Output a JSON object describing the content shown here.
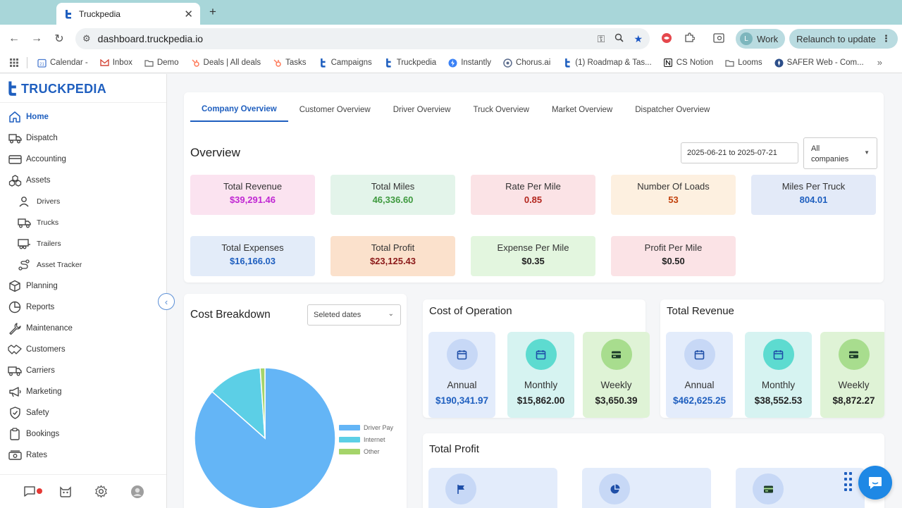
{
  "browser": {
    "tab_title": "Truckpedia",
    "tab_close": "✕",
    "new_tab": "+",
    "url": "dashboard.truckpedia.io",
    "profile_initial": "L",
    "profile_label": "Work",
    "relaunch_label": "Relaunch to update",
    "menu_dots": "⋮",
    "bookmarks": [
      {
        "label": "Calendar -",
        "icon": "calendar-icon",
        "color": "#4a7bd0"
      },
      {
        "label": "Inbox",
        "icon": "gmail-icon",
        "color": "#d44638"
      },
      {
        "label": "Demo",
        "icon": "folder-icon",
        "color": "#666666"
      },
      {
        "label": "Deals | All deals",
        "icon": "hubspot-icon",
        "color": "#ff7a59"
      },
      {
        "label": "Tasks",
        "icon": "hubspot-icon",
        "color": "#ff7a59"
      },
      {
        "label": "Campaigns",
        "icon": "truckpedia-icon",
        "color": "#1f5fbf"
      },
      {
        "label": "Truckpedia",
        "icon": "truckpedia-icon",
        "color": "#1f5fbf"
      },
      {
        "label": "Instantly",
        "icon": "bolt-icon",
        "color": "#3b82f6"
      },
      {
        "label": "Chorus.ai",
        "icon": "chorus-icon",
        "color": "#5a6b8c"
      },
      {
        "label": "(1) Roadmap & Tas...",
        "icon": "truckpedia-icon",
        "color": "#1f5fbf"
      },
      {
        "label": "CS Notion",
        "icon": "notion-icon",
        "color": "#222222"
      },
      {
        "label": "Looms",
        "icon": "folder-icon",
        "color": "#666666"
      },
      {
        "label": "SAFER Web - Com...",
        "icon": "safer-icon",
        "color": "#2d4f8a"
      }
    ],
    "bookmarks_more": "»"
  },
  "app": {
    "logo_text": "TRUCKPEDIA",
    "menu": [
      {
        "label": "Home",
        "icon": "home-icon",
        "active": true,
        "sub": false
      },
      {
        "label": "Dispatch",
        "icon": "truck-icon",
        "active": false,
        "sub": false
      },
      {
        "label": "Accounting",
        "icon": "wallet-icon",
        "active": false,
        "sub": false
      },
      {
        "label": "Assets",
        "icon": "boxes-icon",
        "active": false,
        "sub": false
      },
      {
        "label": "Drivers",
        "icon": "person-icon",
        "active": false,
        "sub": true
      },
      {
        "label": "Trucks",
        "icon": "truck-icon",
        "active": false,
        "sub": true
      },
      {
        "label": "Trailers",
        "icon": "trailer-icon",
        "active": false,
        "sub": true
      },
      {
        "label": "Asset Tracker",
        "icon": "route-icon",
        "active": false,
        "sub": true
      },
      {
        "label": "Planning",
        "icon": "package-icon",
        "active": false,
        "sub": false
      },
      {
        "label": "Reports",
        "icon": "chart-pie-icon",
        "active": false,
        "sub": false
      },
      {
        "label": "Maintenance",
        "icon": "wrench-icon",
        "active": false,
        "sub": false
      },
      {
        "label": "Customers",
        "icon": "handshake-icon",
        "active": false,
        "sub": false
      },
      {
        "label": "Carriers",
        "icon": "truck-fleet-icon",
        "active": false,
        "sub": false
      },
      {
        "label": "Marketing",
        "icon": "megaphone-icon",
        "active": false,
        "sub": false
      },
      {
        "label": "Safety",
        "icon": "shield-icon",
        "active": false,
        "sub": false
      },
      {
        "label": "Bookings",
        "icon": "clipboard-icon",
        "active": false,
        "sub": false
      },
      {
        "label": "Rates",
        "icon": "money-icon",
        "active": false,
        "sub": false
      }
    ],
    "collapse_glyph": "‹"
  },
  "overview": {
    "tabs": [
      "Company Overview",
      "Customer Overview",
      "Driver Overview",
      "Truck Overview",
      "Market Overview",
      "Dispatcher Overview"
    ],
    "active_tab": 0,
    "title": "Overview",
    "date_range": "2025-06-21 to 2025-07-21",
    "company_filter_line1": "All",
    "company_filter_line2": "companies",
    "kpis": [
      {
        "label": "Total Revenue",
        "value": "$39,291.46",
        "bg": "#fbe3f0",
        "color": "#c026d3"
      },
      {
        "label": "Total Miles",
        "value": "46,336.60",
        "bg": "#e3f4ea",
        "color": "#3f9a3f"
      },
      {
        "label": "Rate Per Mile",
        "value": "0.85",
        "bg": "#fbe3e6",
        "color": "#b3261e"
      },
      {
        "label": "Number Of Loads",
        "value": "53",
        "bg": "#fdf0e0",
        "color": "#c2410c"
      },
      {
        "label": "Miles Per Truck",
        "value": "804.01",
        "bg": "#e3eaf8",
        "color": "#1f5fbf"
      },
      {
        "label": "Total Expenses",
        "value": "$16,166.03",
        "bg": "#e3ecf9",
        "color": "#1f5fbf"
      },
      {
        "label": "Total Profit",
        "value": "$23,125.43",
        "bg": "#fbe1cc",
        "color": "#8b1a1a"
      },
      {
        "label": "Expense Per Mile",
        "value": "$0.35",
        "bg": "#e3f6df",
        "color": "#222222"
      },
      {
        "label": "Profit Per Mile",
        "value": "$0.50",
        "bg": "#fbe3e6",
        "color": "#222222"
      }
    ]
  },
  "cost_breakdown": {
    "title": "Cost Breakdown",
    "select_placeholder": "Seleted dates",
    "legend": [
      {
        "label": "Driver Pay",
        "color": "#64b5f6"
      },
      {
        "label": "Internet",
        "color": "#5ccfe6"
      },
      {
        "label": "Other",
        "color": "#a5d46a"
      }
    ]
  },
  "chart_data": {
    "type": "pie",
    "title": "Cost Breakdown",
    "categories": [
      "Driver Pay",
      "Internet",
      "Other"
    ],
    "values": [
      86.5,
      12.4,
      1.1
    ],
    "unit": "percent"
  },
  "cost_of_operation": {
    "title": "Cost of Operation",
    "items": [
      {
        "label": "Annual",
        "value": "$190,341.97",
        "bg": "#e3ecfb",
        "circle": "#c7d8f6",
        "value_color": "#1f5fbf",
        "icon": "calendar-icon"
      },
      {
        "label": "Monthly",
        "value": "$15,862.00",
        "bg": "#d6f3f1",
        "circle": "#5ddbd0",
        "value_color": "#222222",
        "icon": "calendar-icon"
      },
      {
        "label": "Weekly",
        "value": "$3,650.39",
        "bg": "#dff3d6",
        "circle": "#a8dd8e",
        "value_color": "#222222",
        "icon": "card-icon"
      }
    ]
  },
  "total_revenue": {
    "title": "Total Revenue",
    "items": [
      {
        "label": "Annual",
        "value": "$462,625.25",
        "bg": "#e3ecfb",
        "circle": "#c7d8f6",
        "value_color": "#1f5fbf",
        "icon": "calendar-icon"
      },
      {
        "label": "Monthly",
        "value": "$38,552.53",
        "bg": "#d6f3f1",
        "circle": "#5ddbd0",
        "value_color": "#222222",
        "icon": "calendar-icon"
      },
      {
        "label": "Weekly",
        "value": "$8,872.27",
        "bg": "#dff3d6",
        "circle": "#a8dd8e",
        "value_color": "#222222",
        "icon": "card-icon"
      }
    ]
  },
  "total_profit": {
    "title": "Total Profit",
    "items": [
      {
        "bg": "#e3ecfb",
        "circle": "#c7d8f6",
        "icon": "flag-icon"
      },
      {
        "bg": "#e3ecfb",
        "circle": "#c7d8f6",
        "icon": "pie-icon"
      },
      {
        "bg": "#e3ecfb",
        "circle": "#c7d8f6",
        "icon": "card-icon"
      }
    ]
  }
}
